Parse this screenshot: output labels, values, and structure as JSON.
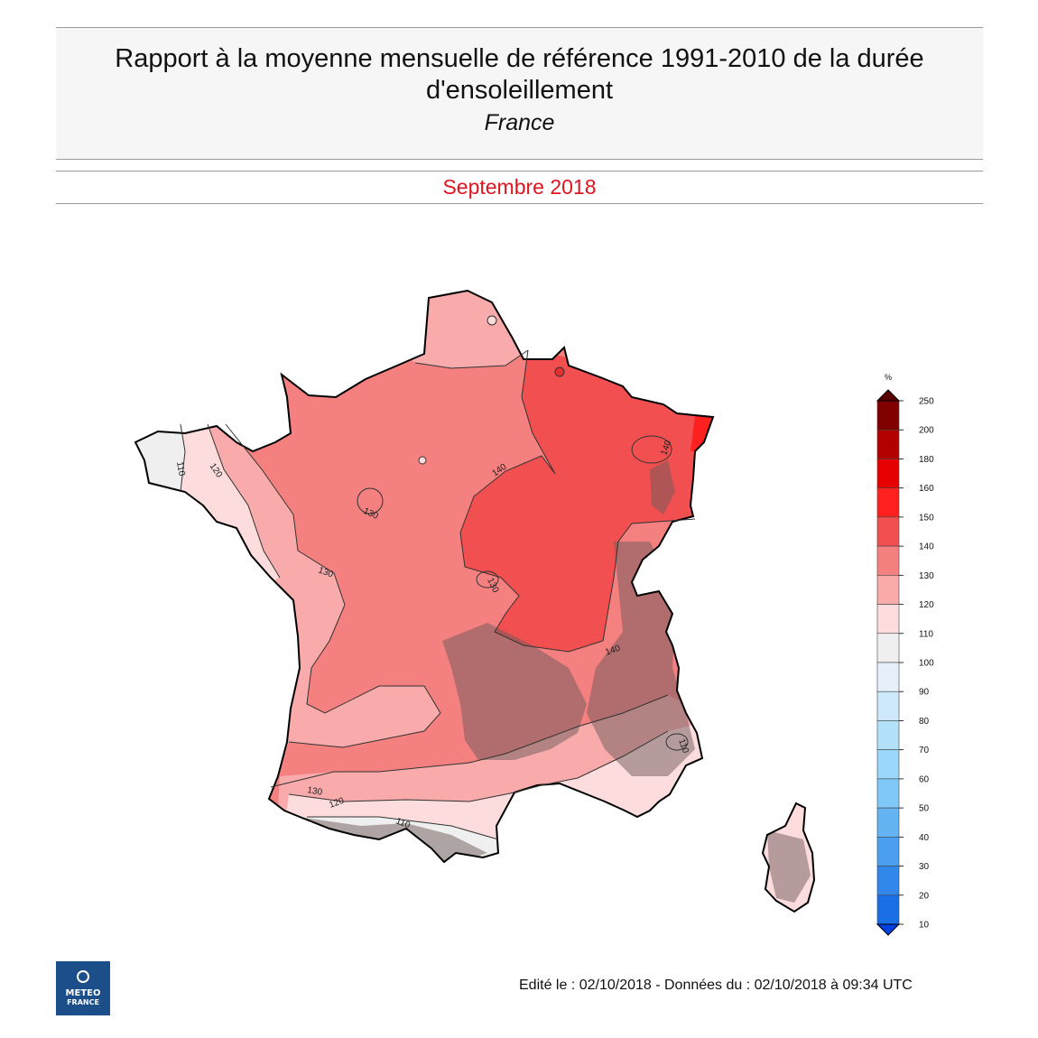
{
  "header": {
    "title": "Rapport à la moyenne mensuelle de référence 1991-2010 de la durée d'ensoleillement",
    "subtitle": "France",
    "period": "Septembre 2018"
  },
  "legend": {
    "unit": "%",
    "levels": [
      {
        "value": "250",
        "color": "#800000"
      },
      {
        "value": "200",
        "color": "#b20000"
      },
      {
        "value": "180",
        "color": "#e60000"
      },
      {
        "value": "160",
        "color": "#ff2020"
      },
      {
        "value": "150",
        "color": "#f25050"
      },
      {
        "value": "140",
        "color": "#f58080"
      },
      {
        "value": "130",
        "color": "#f9aaaa"
      },
      {
        "value": "120",
        "color": "#fcdcdc"
      },
      {
        "value": "110",
        "color": "#efefef"
      },
      {
        "value": "100",
        "color": "#e6f0fa"
      },
      {
        "value": "90",
        "color": "#cde9fa"
      },
      {
        "value": "80",
        "color": "#b4e1fa"
      },
      {
        "value": "70",
        "color": "#9ad7fa"
      },
      {
        "value": "60",
        "color": "#7fc8f7"
      },
      {
        "value": "50",
        "color": "#64b4f3"
      },
      {
        "value": "40",
        "color": "#4b9ff0"
      },
      {
        "value": "30",
        "color": "#3287eb"
      },
      {
        "value": "20",
        "color": "#1a6ee6"
      },
      {
        "value": "10",
        "color": "#0050dc"
      }
    ],
    "top_arrow_color": "#5a0000",
    "bottom_arrow_color": "#0040e0"
  },
  "map": {
    "contour_labels": [
      "110",
      "120",
      "130",
      "140",
      "140",
      "140",
      "130",
      "130",
      "130",
      "120",
      "110",
      "110"
    ]
  },
  "footer": {
    "edited": "Edité le : 02/10/2018 - Données du : 02/10/2018 à 09:34 UTC"
  },
  "logo": {
    "line1": "METEO",
    "line2": "FRANCE"
  }
}
